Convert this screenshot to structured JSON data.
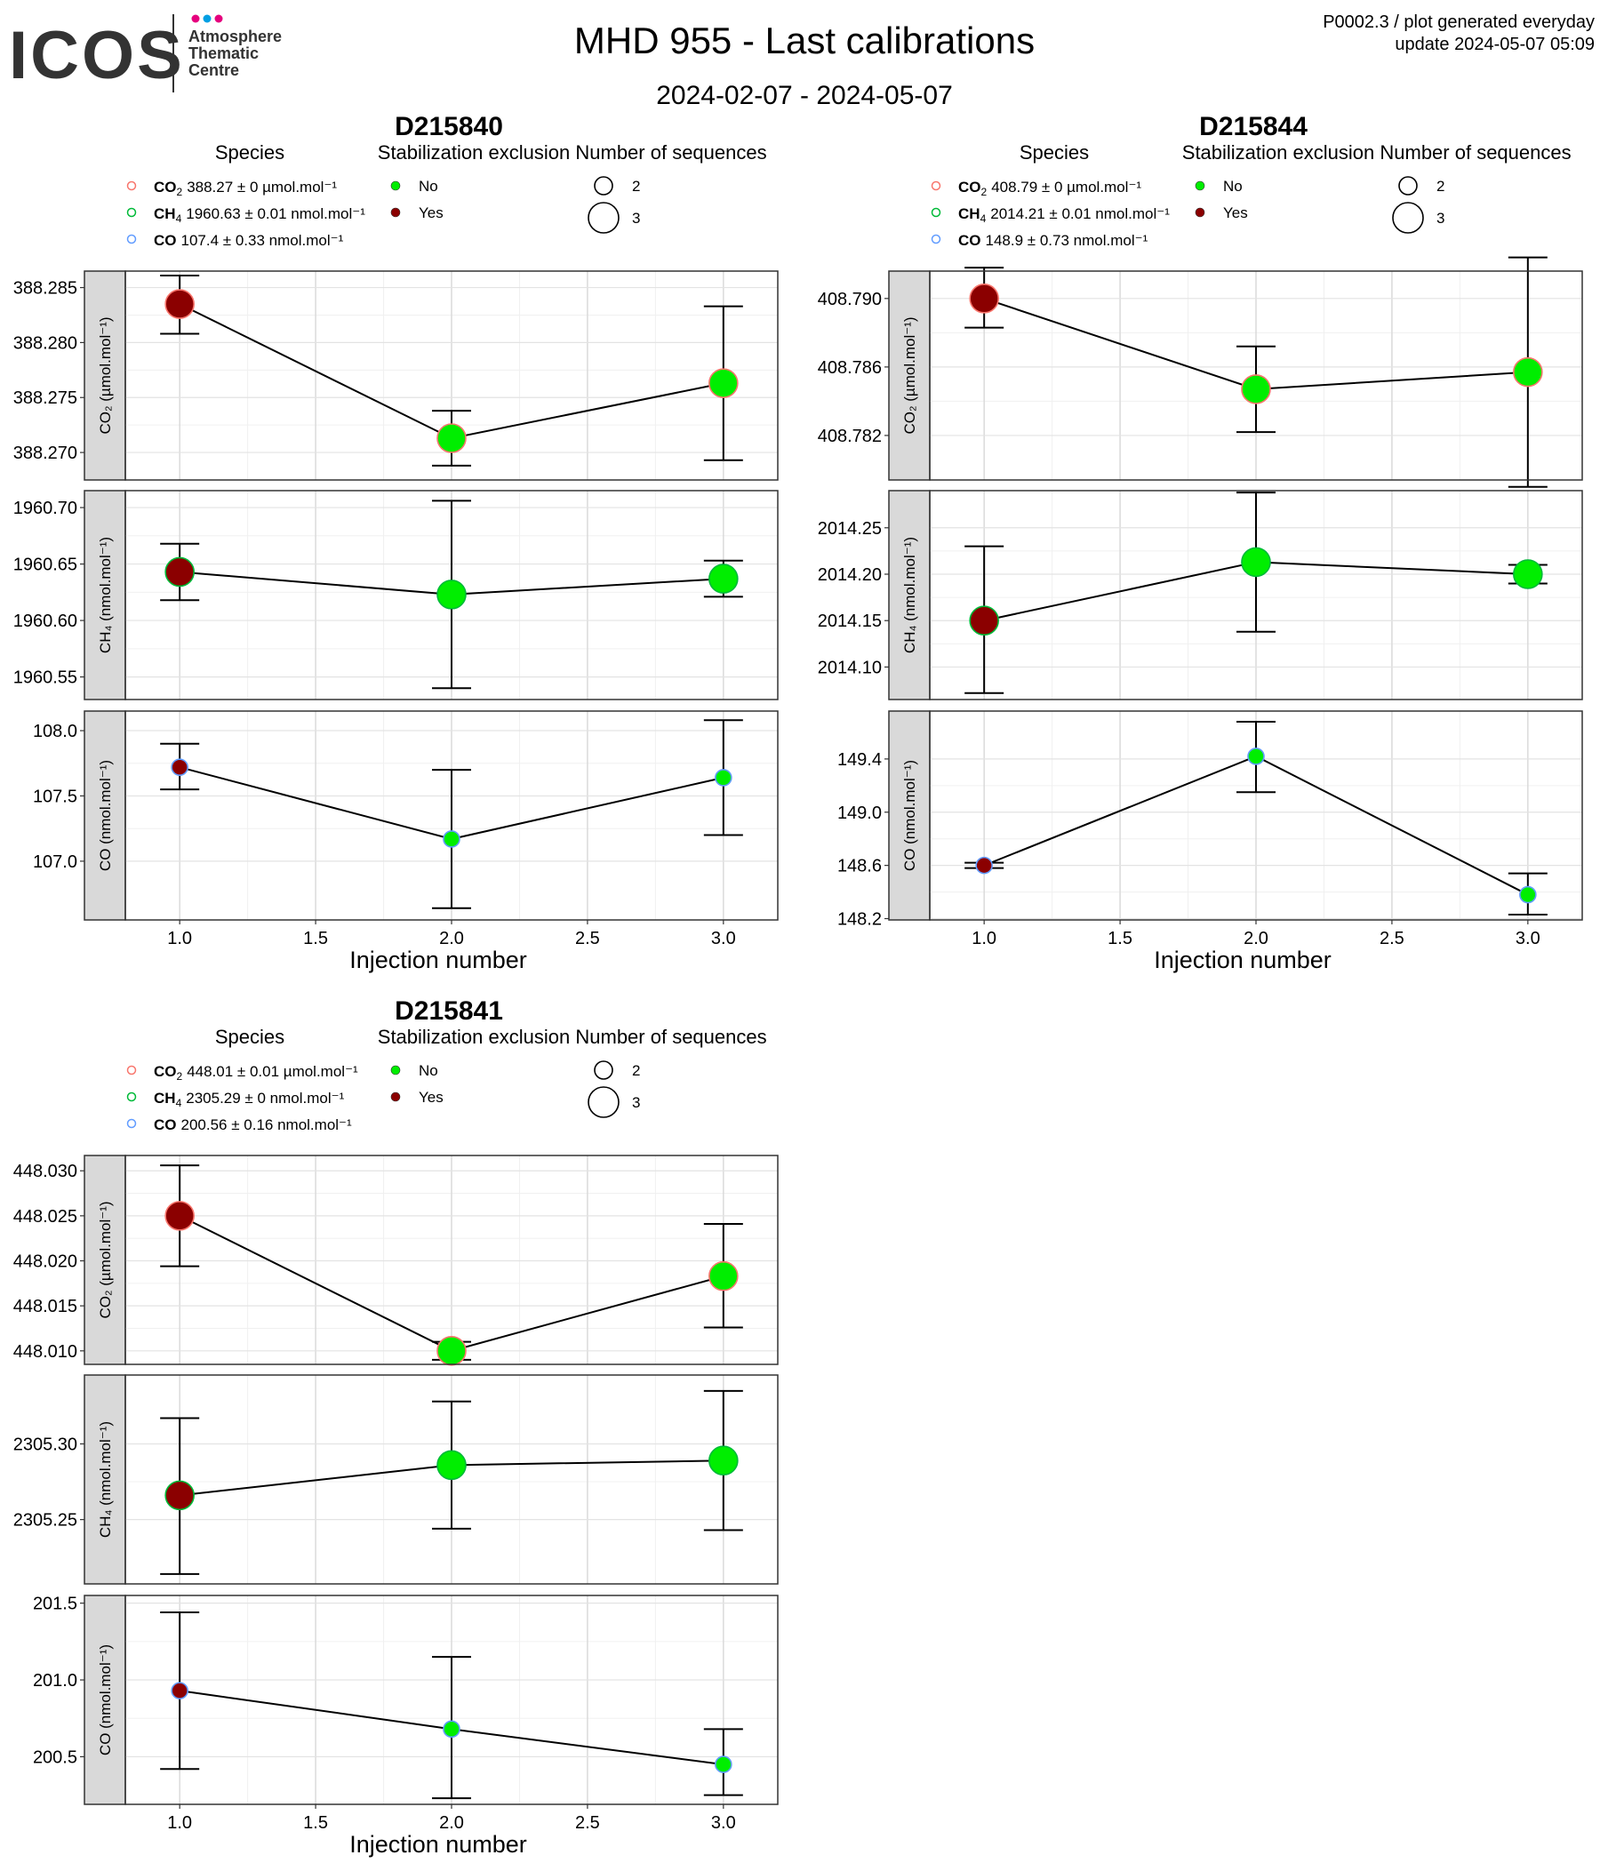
{
  "header": {
    "logo_text": "ICOS",
    "logo_subtitle": [
      "Atmosphere",
      "Thematic",
      "Centre"
    ],
    "title": "MHD 955 - Last calibrations",
    "subtitle": "2024-02-07 - 2024-05-07",
    "info_line1": "P0002.3 / plot generated everyday",
    "info_line2": "update  2024-05-07 05:09"
  },
  "legend_titles": {
    "species": "Species",
    "stabilization": "Stabilization exclusion",
    "sequences": "Number of sequences"
  },
  "legend_values": {
    "stabilization": [
      "No",
      "Yes"
    ],
    "sequences": [
      "2",
      "3"
    ]
  },
  "colors": {
    "no": "#00ee00",
    "yes": "#8b0000",
    "co2": "#f8766d",
    "ch4": "#00ba38",
    "co": "#619cff",
    "strip": "#d9d9d9"
  },
  "chart_data": [
    {
      "type": "scatter",
      "title": "D215840",
      "xlabel": "Injection number",
      "x_ticks": [
        "1.0",
        "1.5",
        "2.0",
        "2.5",
        "3.0"
      ],
      "xlim": [
        0.8,
        3.2
      ],
      "species_legend": [
        {
          "species": "CO2",
          "text": "388.27 ± 0 µmol.mol⁻¹"
        },
        {
          "species": "CH4",
          "text": "1960.63 ± 0.01 nmol.mol⁻¹"
        },
        {
          "species": "CO",
          "text": "107.4 ± 0.33 nmol.mol⁻¹"
        }
      ],
      "panels": [
        {
          "strip": "CO₂ (µmol.mol⁻¹)",
          "ylim": [
            388.2675,
            388.2865
          ],
          "y_ticks": [
            "388.270",
            "388.275",
            "388.280",
            "388.285"
          ],
          "y_tick_values": [
            388.27,
            388.275,
            388.28,
            388.285
          ],
          "points": [
            {
              "x": 1,
              "y": 388.2835,
              "lo": 388.2808,
              "hi": 388.2861,
              "excluded": true,
              "n": 3
            },
            {
              "x": 2,
              "y": 388.2713,
              "lo": 388.2688,
              "hi": 388.2738,
              "excluded": false,
              "n": 3
            },
            {
              "x": 3,
              "y": 388.2763,
              "lo": 388.2693,
              "hi": 388.2833,
              "excluded": false,
              "n": 3
            }
          ]
        },
        {
          "strip": "CH₄ (nmol.mol⁻¹)",
          "ylim": [
            1960.53,
            1960.715
          ],
          "y_ticks": [
            "1960.55",
            "1960.60",
            "1960.65",
            "1960.70"
          ],
          "y_tick_values": [
            1960.55,
            1960.6,
            1960.65,
            1960.7
          ],
          "points": [
            {
              "x": 1,
              "y": 1960.643,
              "lo": 1960.618,
              "hi": 1960.668,
              "excluded": true,
              "n": 3
            },
            {
              "x": 2,
              "y": 1960.623,
              "lo": 1960.54,
              "hi": 1960.706,
              "excluded": false,
              "n": 3
            },
            {
              "x": 3,
              "y": 1960.637,
              "lo": 1960.621,
              "hi": 1960.653,
              "excluded": false,
              "n": 3
            }
          ]
        },
        {
          "strip": "CO (nmol.mol⁻¹)",
          "ylim": [
            106.55,
            108.15
          ],
          "y_ticks": [
            "107.0",
            "107.5",
            "108.0"
          ],
          "y_tick_values": [
            107.0,
            107.5,
            108.0
          ],
          "points": [
            {
              "x": 1,
              "y": 107.72,
              "lo": 107.55,
              "hi": 107.9,
              "excluded": true,
              "n": 2
            },
            {
              "x": 2,
              "y": 107.17,
              "lo": 106.64,
              "hi": 107.7,
              "excluded": false,
              "n": 2
            },
            {
              "x": 3,
              "y": 107.64,
              "lo": 107.2,
              "hi": 108.08,
              "excluded": false,
              "n": 2
            }
          ]
        }
      ]
    },
    {
      "type": "scatter",
      "title": "D215844",
      "xlabel": "Injection number",
      "x_ticks": [
        "1.0",
        "1.5",
        "2.0",
        "2.5",
        "3.0"
      ],
      "xlim": [
        0.8,
        3.2
      ],
      "species_legend": [
        {
          "species": "CO2",
          "text": "408.79 ± 0 µmol.mol⁻¹"
        },
        {
          "species": "CH4",
          "text": "2014.21 ± 0.01 nmol.mol⁻¹"
        },
        {
          "species": "CO",
          "text": "148.9 ± 0.73 nmol.mol⁻¹"
        }
      ],
      "panels": [
        {
          "strip": "CO₂ (µmol.mol⁻¹)",
          "ylim": [
            408.7794,
            408.7916
          ],
          "y_ticks": [
            "408.782",
            "408.786",
            "408.790"
          ],
          "y_tick_values": [
            408.782,
            408.786,
            408.79
          ],
          "points": [
            {
              "x": 1,
              "y": 408.79,
              "lo": 408.7883,
              "hi": 408.7918,
              "excluded": true,
              "n": 3
            },
            {
              "x": 2,
              "y": 408.7847,
              "lo": 408.7822,
              "hi": 408.7872,
              "excluded": false,
              "n": 3
            },
            {
              "x": 3,
              "y": 408.7857,
              "lo": 408.779,
              "hi": 408.7924,
              "excluded": false,
              "n": 3
            }
          ]
        },
        {
          "strip": "CH₄ (nmol.mol⁻¹)",
          "ylim": [
            2014.065,
            2014.29
          ],
          "y_ticks": [
            "2014.10",
            "2014.15",
            "2014.20",
            "2014.25"
          ],
          "y_tick_values": [
            2014.1,
            2014.15,
            2014.2,
            2014.25
          ],
          "points": [
            {
              "x": 1,
              "y": 2014.15,
              "lo": 2014.072,
              "hi": 2014.23,
              "excluded": true,
              "n": 3
            },
            {
              "x": 2,
              "y": 2014.213,
              "lo": 2014.138,
              "hi": 2014.288,
              "excluded": false,
              "n": 3
            },
            {
              "x": 3,
              "y": 2014.2,
              "lo": 2014.19,
              "hi": 2014.21,
              "excluded": false,
              "n": 3
            }
          ]
        },
        {
          "strip": "CO (nmol.mol⁻¹)",
          "ylim": [
            148.19,
            149.76
          ],
          "y_ticks": [
            "148.2",
            "148.6",
            "149.0",
            "149.4"
          ],
          "y_tick_values": [
            148.2,
            148.6,
            149.0,
            149.4
          ],
          "points": [
            {
              "x": 1,
              "y": 148.6,
              "lo": 148.58,
              "hi": 148.62,
              "excluded": true,
              "n": 2
            },
            {
              "x": 2,
              "y": 149.42,
              "lo": 149.15,
              "hi": 149.68,
              "excluded": false,
              "n": 2
            },
            {
              "x": 3,
              "y": 148.38,
              "lo": 148.23,
              "hi": 148.54,
              "excluded": false,
              "n": 2
            }
          ]
        }
      ]
    },
    {
      "type": "scatter",
      "title": "D215841",
      "xlabel": "Injection number",
      "x_ticks": [
        "1.0",
        "1.5",
        "2.0",
        "2.5",
        "3.0"
      ],
      "xlim": [
        0.8,
        3.2
      ],
      "species_legend": [
        {
          "species": "CO2",
          "text": "448.01 ± 0.01 µmol.mol⁻¹"
        },
        {
          "species": "CH4",
          "text": "2305.29 ± 0 nmol.mol⁻¹"
        },
        {
          "species": "CO",
          "text": "200.56 ± 0.16 nmol.mol⁻¹"
        }
      ],
      "panels": [
        {
          "strip": "CO₂ (µmol.mol⁻¹)",
          "ylim": [
            448.0085,
            448.0317
          ],
          "y_ticks": [
            "448.010",
            "448.015",
            "448.020",
            "448.025",
            "448.030"
          ],
          "y_tick_values": [
            448.01,
            448.015,
            448.02,
            448.025,
            448.03
          ],
          "points": [
            {
              "x": 1,
              "y": 448.025,
              "lo": 448.0194,
              "hi": 448.0306,
              "excluded": true,
              "n": 3
            },
            {
              "x": 2,
              "y": 448.01,
              "lo": 448.009,
              "hi": 448.011,
              "excluded": false,
              "n": 3
            },
            {
              "x": 3,
              "y": 448.0183,
              "lo": 448.0126,
              "hi": 448.0241,
              "excluded": false,
              "n": 3
            }
          ]
        },
        {
          "strip": "CH₄ (nmol.mol⁻¹)",
          "ylim": [
            2305.2075,
            2305.3455
          ],
          "y_ticks": [
            "2305.25",
            "2305.30"
          ],
          "y_tick_values": [
            2305.25,
            2305.3
          ],
          "points": [
            {
              "x": 1,
              "y": 2305.266,
              "lo": 2305.214,
              "hi": 2305.317,
              "excluded": true,
              "n": 3
            },
            {
              "x": 2,
              "y": 2305.286,
              "lo": 2305.244,
              "hi": 2305.328,
              "excluded": false,
              "n": 3
            },
            {
              "x": 3,
              "y": 2305.289,
              "lo": 2305.243,
              "hi": 2305.335,
              "excluded": false,
              "n": 3
            }
          ]
        },
        {
          "strip": "CO (nmol.mol⁻¹)",
          "ylim": [
            200.19,
            201.55
          ],
          "y_ticks": [
            "200.5",
            "201.0",
            "201.5"
          ],
          "y_tick_values": [
            200.5,
            201.0,
            201.5
          ],
          "points": [
            {
              "x": 1,
              "y": 200.93,
              "lo": 200.42,
              "hi": 201.44,
              "excluded": true,
              "n": 2
            },
            {
              "x": 2,
              "y": 200.68,
              "lo": 200.23,
              "hi": 201.15,
              "excluded": false,
              "n": 2
            },
            {
              "x": 3,
              "y": 200.45,
              "lo": 200.25,
              "hi": 200.68,
              "excluded": false,
              "n": 2
            }
          ]
        }
      ]
    }
  ]
}
